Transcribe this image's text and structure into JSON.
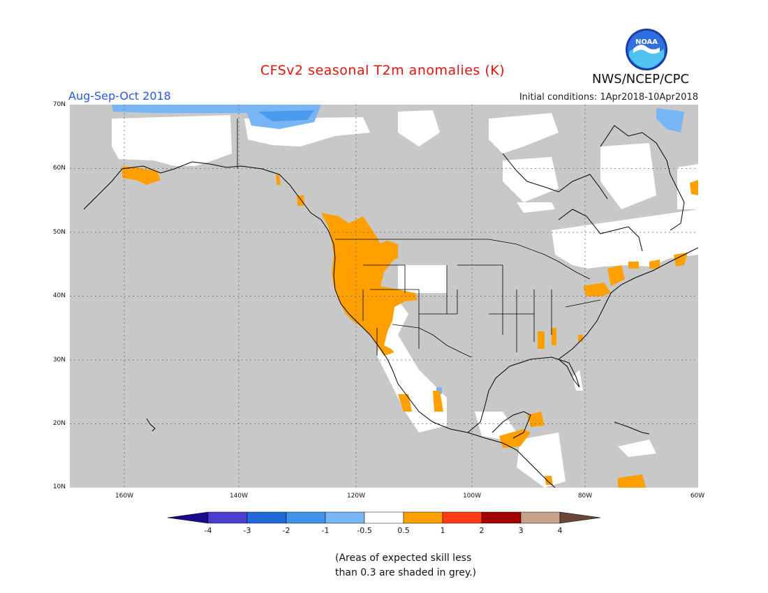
{
  "header": {
    "title": "CFSv2 seasonal T2m anomalies (K)",
    "period": "Aug-Sep-Oct 2018",
    "initial_conditions": "Initial conditions: 1Apr2018-10Apr2018",
    "agency": "NWS/NCEP/CPC",
    "logo_text": "NOAA"
  },
  "map": {
    "lat_ticks": [
      "70N",
      "60N",
      "50N",
      "40N",
      "30N",
      "20N",
      "10N"
    ],
    "lon_ticks": [
      "160W",
      "140W",
      "120W",
      "100W",
      "80W",
      "60W"
    ],
    "colors": {
      "grey_low_skill": "#c8c8c8",
      "positive_anomaly": "#ff9f00",
      "negative_light": "#77b5f5",
      "negative_mid": "#4a9aef",
      "neutral": "#ffffff"
    }
  },
  "colorbar": {
    "labels": [
      "-4",
      "-3",
      "-2",
      "-1",
      "-0.5",
      "0.5",
      "1",
      "2",
      "3",
      "4"
    ],
    "colors": [
      "#1a0a8c",
      "#4a3ed0",
      "#2168d8",
      "#3f95ee",
      "#77b5f5",
      "#ffffff",
      "#ff9f00",
      "#ff3c14",
      "#a30000",
      "#c9a08a",
      "#6b4535"
    ]
  },
  "footnote": {
    "line1": "(Areas of expected skill less",
    "line2": "than 0.3 are shaded in grey.)"
  }
}
